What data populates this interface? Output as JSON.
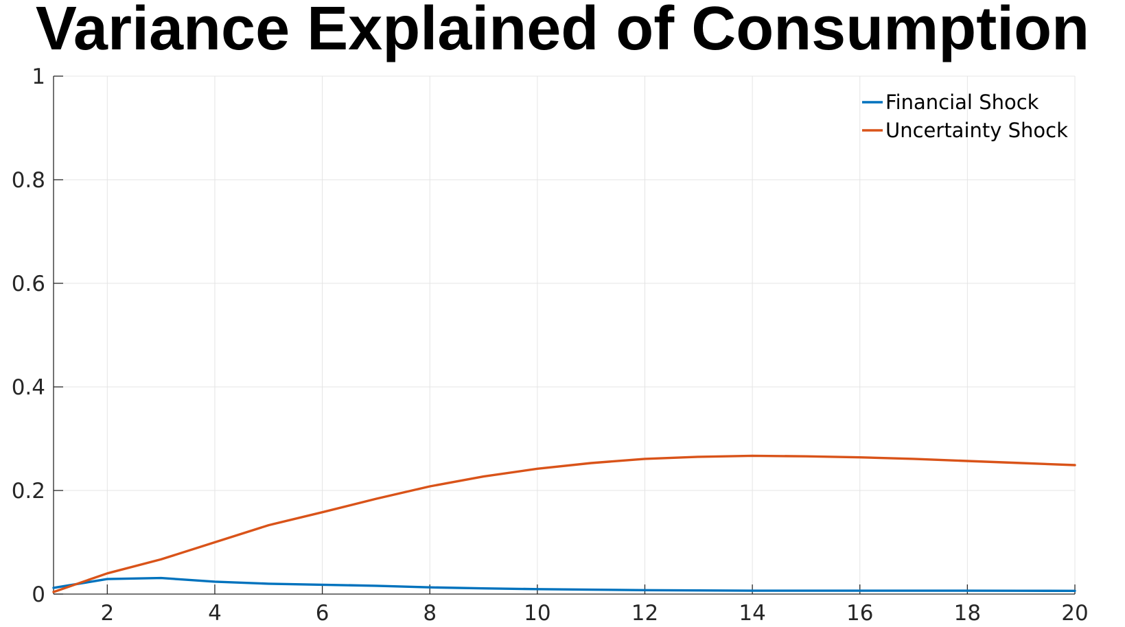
{
  "chart_data": {
    "type": "line",
    "title": "Variance Explained of Consumption",
    "xlabel": "",
    "ylabel": "",
    "xlim": [
      1,
      20
    ],
    "ylim": [
      0,
      1
    ],
    "x_ticks": [
      2,
      4,
      6,
      8,
      10,
      12,
      14,
      16,
      18,
      20
    ],
    "y_ticks": [
      0,
      0.2,
      0.4,
      0.6,
      0.8,
      1
    ],
    "grid": true,
    "legend_position": "top-right",
    "x": [
      1,
      2,
      3,
      4,
      5,
      6,
      7,
      8,
      9,
      10,
      11,
      12,
      13,
      14,
      15,
      16,
      17,
      18,
      19,
      20
    ],
    "series": [
      {
        "name": "Financial Shock",
        "color": "#0072BD",
        "values": [
          0.012,
          0.029,
          0.031,
          0.024,
          0.02,
          0.018,
          0.016,
          0.013,
          0.011,
          0.0095,
          0.0085,
          0.0075,
          0.007,
          0.0065,
          0.0065,
          0.0065,
          0.0065,
          0.0065,
          0.0063,
          0.0062
        ]
      },
      {
        "name": "Uncertainty Shock",
        "color": "#D95319",
        "values": [
          0.004,
          0.04,
          0.067,
          0.1,
          0.133,
          0.158,
          0.184,
          0.208,
          0.227,
          0.242,
          0.253,
          0.261,
          0.265,
          0.267,
          0.266,
          0.264,
          0.261,
          0.257,
          0.253,
          0.249
        ]
      }
    ]
  }
}
